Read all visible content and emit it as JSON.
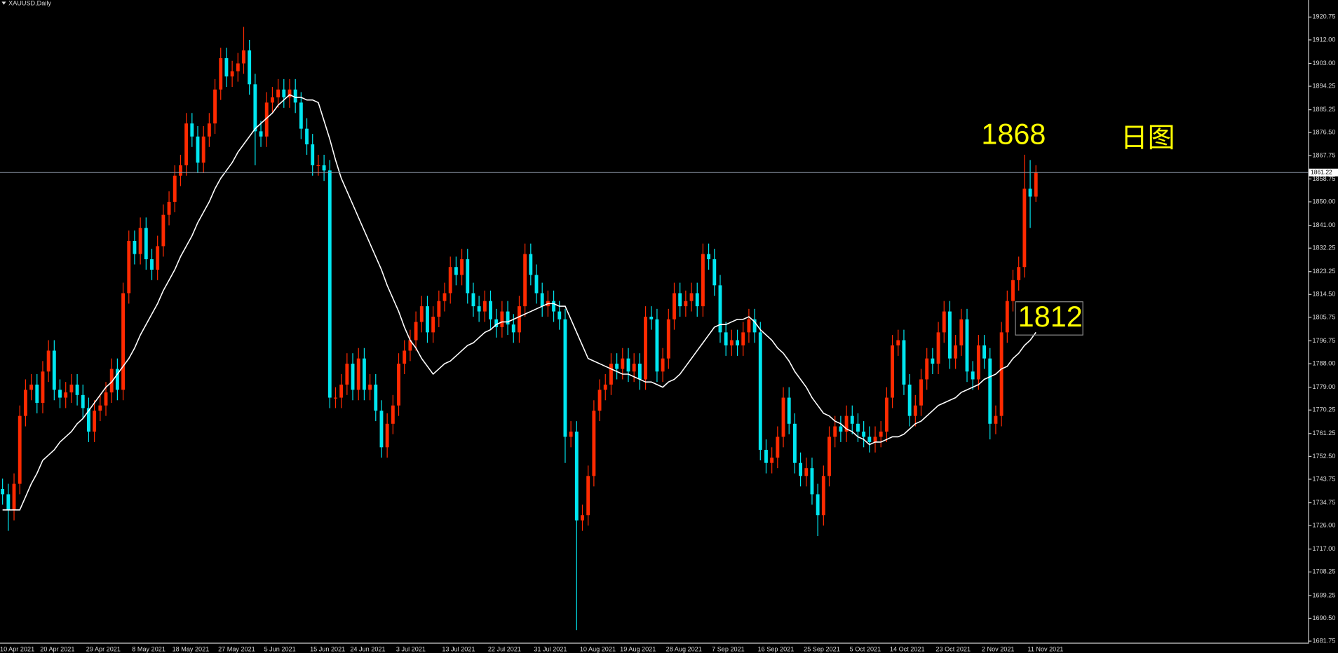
{
  "chart_data": {
    "type": "candlestick",
    "title": "XAUUSD,Daily",
    "categories": [
      "10 Apr 2021",
      null,
      null,
      null,
      null,
      null,
      null,
      "20 Apr 2021",
      null,
      null,
      null,
      null,
      null,
      null,
      null,
      "29 Apr 2021",
      null,
      null,
      null,
      null,
      null,
      null,
      null,
      "8 May 2021",
      null,
      null,
      null,
      null,
      null,
      null,
      "18 May 2021",
      null,
      null,
      null,
      null,
      null,
      null,
      null,
      "27 May 2021",
      null,
      null,
      null,
      null,
      null,
      null,
      null,
      "5 Jun 2021",
      null,
      null,
      null,
      null,
      null,
      null,
      null,
      "15 Jun 2021",
      null,
      null,
      null,
      null,
      null,
      null,
      "24 Jun 2021",
      null,
      null,
      null,
      null,
      null,
      null,
      null,
      "3 Jul 2021",
      null,
      null,
      null,
      null,
      null,
      null,
      null,
      "13 Jul 2021",
      null,
      null,
      null,
      null,
      null,
      null,
      null,
      "22 Jul 2021",
      null,
      null,
      null,
      null,
      null,
      null,
      null,
      "31 Jul 2021",
      null,
      null,
      null,
      null,
      null,
      null,
      null,
      "10 Aug 2021",
      null,
      null,
      null,
      null,
      null,
      null,
      "19 Aug 2021",
      null,
      null,
      null,
      null,
      null,
      null,
      null,
      "28 Aug 2021",
      null,
      null,
      null,
      null,
      null,
      null,
      null,
      "7 Sep 2021",
      null,
      null,
      null,
      null,
      null,
      null,
      null,
      "16 Sep 2021",
      null,
      null,
      null,
      null,
      null,
      null,
      null,
      "25 Sep 2021",
      null,
      null,
      null,
      null,
      null,
      null,
      null,
      "5 Oct 2021",
      null,
      null,
      null,
      null,
      null,
      null,
      "14 Oct 2021",
      null,
      null,
      null,
      null,
      null,
      null,
      null,
      "23 Oct 2021",
      null,
      null,
      null,
      null,
      null,
      null,
      null,
      "2 Nov 2021",
      null,
      null,
      null,
      null,
      null,
      null,
      null,
      "11 Nov 2021",
      null
    ],
    "open": [
      1740,
      1738,
      1732,
      1742,
      1768,
      1778,
      1780,
      1773,
      1785,
      1793,
      1778,
      1775,
      1777,
      1780,
      1776,
      1771,
      1762,
      1770,
      1772,
      1777,
      1786,
      1778,
      1815,
      1835,
      1830,
      1840,
      1828,
      1824,
      1833,
      1845,
      1850,
      1860,
      1864,
      1880,
      1875,
      1865,
      1875,
      1880,
      1893,
      1905,
      1898,
      1900,
      1903,
      1908,
      1895,
      1877,
      1875,
      1888,
      1890,
      1893,
      1890,
      1893,
      1888,
      1878,
      1872,
      1864,
      1864,
      1862,
      1775,
      1775,
      1780,
      1788,
      1778,
      1790,
      1778,
      1780,
      1770,
      1756,
      1765,
      1772,
      1788,
      1793,
      1797,
      1804,
      1810,
      1800,
      1806,
      1812,
      1815,
      1825,
      1822,
      1828,
      1815,
      1810,
      1808,
      1812,
      1805,
      1802,
      1808,
      1803,
      1800,
      1810,
      1830,
      1822,
      1815,
      1810,
      1812,
      1808,
      1805,
      1760,
      1762,
      1728,
      1730,
      1745,
      1770,
      1778,
      1780,
      1788,
      1786,
      1790,
      1785,
      1788,
      1782,
      1806,
      1805,
      1785,
      1790,
      1805,
      1815,
      1810,
      1812,
      1815,
      1810,
      1830,
      1828,
      1818,
      1800,
      1795,
      1797,
      1795,
      1800,
      1805,
      1800,
      1755,
      1750,
      1752,
      1760,
      1775,
      1765,
      1750,
      1745,
      1748,
      1738,
      1730,
      1745,
      1760,
      1764,
      1762,
      1768,
      1765,
      1762,
      1760,
      1758,
      1760,
      1762,
      1775,
      1795,
      1797,
      1780,
      1768,
      1772,
      1782,
      1790,
      1788,
      1800,
      1808,
      1790,
      1795,
      1805,
      1785,
      1782,
      1795,
      1790,
      1765,
      1768,
      1800,
      1812,
      1820,
      1825,
      1855,
      1852
    ],
    "high": [
      1744,
      1742,
      1746,
      1772,
      1782,
      1784,
      1784,
      1789,
      1797,
      1797,
      1782,
      1781,
      1784,
      1784,
      1780,
      1775,
      1774,
      1776,
      1781,
      1790,
      1790,
      1819,
      1839,
      1839,
      1844,
      1844,
      1832,
      1837,
      1849,
      1854,
      1864,
      1868,
      1884,
      1884,
      1879,
      1879,
      1884,
      1897,
      1909,
      1909,
      1904,
      1907,
      1917,
      1912,
      1899,
      1881,
      1892,
      1894,
      1897,
      1897,
      1897,
      1897,
      1892,
      1882,
      1876,
      1868,
      1868,
      1866,
      1779,
      1784,
      1792,
      1792,
      1794,
      1794,
      1784,
      1784,
      1774,
      1769,
      1776,
      1792,
      1797,
      1801,
      1808,
      1814,
      1814,
      1810,
      1816,
      1819,
      1829,
      1829,
      1832,
      1832,
      1819,
      1814,
      1816,
      1816,
      1809,
      1812,
      1812,
      1807,
      1814,
      1834,
      1834,
      1826,
      1819,
      1816,
      1816,
      1812,
      1809,
      1766,
      1766,
      1734,
      1749,
      1774,
      1782,
      1784,
      1792,
      1792,
      1794,
      1794,
      1792,
      1792,
      1810,
      1810,
      1809,
      1794,
      1809,
      1819,
      1819,
      1816,
      1819,
      1819,
      1834,
      1834,
      1832,
      1822,
      1804,
      1801,
      1801,
      1804,
      1809,
      1809,
      1804,
      1759,
      1756,
      1764,
      1779,
      1779,
      1769,
      1754,
      1752,
      1752,
      1742,
      1749,
      1764,
      1768,
      1768,
      1772,
      1772,
      1769,
      1766,
      1764,
      1764,
      1766,
      1779,
      1799,
      1801,
      1801,
      1784,
      1776,
      1786,
      1794,
      1794,
      1804,
      1812,
      1812,
      1799,
      1809,
      1809,
      1789,
      1799,
      1799,
      1794,
      1772,
      1804,
      1816,
      1824,
      1829,
      1868,
      1866,
      1864
    ],
    "low": [
      1734,
      1724,
      1728,
      1738,
      1764,
      1774,
      1769,
      1769,
      1781,
      1774,
      1771,
      1771,
      1773,
      1772,
      1767,
      1758,
      1758,
      1766,
      1768,
      1773,
      1774,
      1774,
      1811,
      1826,
      1826,
      1824,
      1820,
      1820,
      1829,
      1841,
      1846,
      1856,
      1860,
      1871,
      1861,
      1861,
      1871,
      1876,
      1889,
      1894,
      1894,
      1896,
      1899,
      1891,
      1864,
      1871,
      1871,
      1884,
      1886,
      1886,
      1886,
      1884,
      1874,
      1868,
      1860,
      1860,
      1858,
      1771,
      1771,
      1771,
      1776,
      1774,
      1774,
      1774,
      1774,
      1766,
      1752,
      1752,
      1761,
      1768,
      1784,
      1789,
      1793,
      1800,
      1796,
      1796,
      1802,
      1808,
      1811,
      1818,
      1818,
      1811,
      1806,
      1804,
      1804,
      1801,
      1798,
      1798,
      1799,
      1796,
      1796,
      1806,
      1818,
      1811,
      1806,
      1806,
      1804,
      1801,
      1750,
      1756,
      1686,
      1724,
      1726,
      1741,
      1766,
      1774,
      1776,
      1782,
      1782,
      1781,
      1781,
      1778,
      1778,
      1801,
      1781,
      1781,
      1786,
      1801,
      1806,
      1806,
      1808,
      1806,
      1806,
      1824,
      1814,
      1796,
      1791,
      1791,
      1791,
      1791,
      1796,
      1796,
      1751,
      1746,
      1746,
      1748,
      1756,
      1761,
      1746,
      1741,
      1741,
      1734,
      1722,
      1726,
      1741,
      1756,
      1758,
      1758,
      1761,
      1758,
      1756,
      1754,
      1754,
      1756,
      1758,
      1771,
      1791,
      1776,
      1764,
      1764,
      1768,
      1778,
      1784,
      1784,
      1796,
      1786,
      1786,
      1791,
      1781,
      1778,
      1778,
      1786,
      1759,
      1761,
      1764,
      1796,
      1808,
      1816,
      1821,
      1840,
      1850
    ],
    "close": [
      1738,
      1732,
      1742,
      1768,
      1778,
      1780,
      1773,
      1785,
      1793,
      1778,
      1775,
      1777,
      1780,
      1776,
      1771,
      1762,
      1770,
      1772,
      1777,
      1786,
      1778,
      1815,
      1835,
      1830,
      1840,
      1828,
      1824,
      1833,
      1845,
      1850,
      1860,
      1864,
      1880,
      1875,
      1865,
      1875,
      1880,
      1893,
      1905,
      1898,
      1900,
      1903,
      1908,
      1895,
      1877,
      1875,
      1888,
      1890,
      1893,
      1890,
      1893,
      1888,
      1878,
      1872,
      1864,
      1864,
      1862,
      1775,
      1775,
      1780,
      1788,
      1778,
      1790,
      1778,
      1780,
      1770,
      1756,
      1765,
      1772,
      1788,
      1793,
      1797,
      1804,
      1810,
      1800,
      1806,
      1812,
      1815,
      1825,
      1822,
      1828,
      1815,
      1810,
      1808,
      1812,
      1805,
      1802,
      1808,
      1803,
      1800,
      1810,
      1830,
      1822,
      1815,
      1810,
      1812,
      1808,
      1805,
      1760,
      1762,
      1728,
      1730,
      1745,
      1770,
      1778,
      1780,
      1788,
      1786,
      1790,
      1785,
      1788,
      1782,
      1806,
      1805,
      1785,
      1790,
      1805,
      1815,
      1810,
      1812,
      1815,
      1810,
      1830,
      1828,
      1818,
      1800,
      1795,
      1797,
      1795,
      1800,
      1805,
      1800,
      1755,
      1750,
      1752,
      1760,
      1775,
      1765,
      1750,
      1745,
      1748,
      1738,
      1730,
      1745,
      1760,
      1764,
      1762,
      1768,
      1765,
      1762,
      1760,
      1758,
      1760,
      1762,
      1775,
      1795,
      1797,
      1780,
      1768,
      1772,
      1782,
      1790,
      1788,
      1800,
      1808,
      1790,
      1795,
      1805,
      1785,
      1782,
      1795,
      1790,
      1765,
      1768,
      1800,
      1812,
      1820,
      1825,
      1855,
      1852,
      1861.22
    ],
    "up_color": "#ff2a00",
    "down_color": "#00e6f0",
    "moving_average": {
      "color": "#ffffff",
      "values": [
        1732,
        1732,
        1732,
        1732,
        1737,
        1742,
        1746,
        1751,
        1753,
        1755,
        1758,
        1760,
        1762,
        1765,
        1767,
        1770,
        1773,
        1776,
        1779,
        1781,
        1784,
        1787,
        1790,
        1794,
        1799,
        1803,
        1807,
        1811,
        1816,
        1820,
        1824,
        1829,
        1833,
        1837,
        1842,
        1846,
        1850,
        1855,
        1859,
        1862,
        1865,
        1869,
        1872,
        1875,
        1878,
        1880,
        1882,
        1884,
        1887,
        1889,
        1891,
        1890,
        1890,
        1889,
        1889,
        1888,
        1881,
        1874,
        1866,
        1859,
        1854,
        1849,
        1844,
        1839,
        1834,
        1829,
        1824,
        1818,
        1813,
        1808,
        1802,
        1797,
        1794,
        1790,
        1787,
        1784,
        1786,
        1788,
        1789,
        1791,
        1793,
        1795,
        1796,
        1798,
        1800,
        1801,
        1803,
        1804,
        1804,
        1805,
        1806,
        1807,
        1808,
        1809,
        1810,
        1811,
        1811,
        1810,
        1810,
        1805,
        1800,
        1795,
        1790,
        1789,
        1788,
        1787,
        1786,
        1785,
        1784,
        1784,
        1783,
        1782,
        1781,
        1781,
        1780,
        1779,
        1781,
        1782,
        1784,
        1787,
        1790,
        1793,
        1796,
        1799,
        1802,
        1803,
        1803,
        1804,
        1805,
        1805,
        1806,
        1804,
        1801,
        1799,
        1797,
        1794,
        1792,
        1789,
        1785,
        1782,
        1779,
        1775,
        1772,
        1769,
        1768,
        1766,
        1765,
        1763,
        1762,
        1760,
        1759,
        1757,
        1758,
        1758,
        1759,
        1760,
        1760,
        1761,
        1763,
        1765,
        1766,
        1768,
        1770,
        1772,
        1773,
        1774,
        1775,
        1777,
        1778,
        1779,
        1780,
        1782,
        1783,
        1784,
        1786,
        1787,
        1790,
        1792,
        1795,
        1797,
        1800
      ]
    },
    "current_price": 1861.22,
    "current_price_color": "#8a96a6",
    "ylim": [
      1680.8,
      1927.28
    ],
    "yticks": [
      {
        "value": 1920.75,
        "label": "1920.75"
      },
      {
        "value": 1912,
        "label": "1912.00"
      },
      {
        "value": 1903,
        "label": "1903.00"
      },
      {
        "value": 1894.25,
        "label": "1894.25"
      },
      {
        "value": 1885.25,
        "label": "1885.25"
      },
      {
        "value": 1876.5,
        "label": "1876.50"
      },
      {
        "value": 1867.75,
        "label": "1867.75"
      },
      {
        "value": 1858.75,
        "label": "1858.75"
      },
      {
        "value": 1850,
        "label": "1850.00"
      },
      {
        "value": 1841,
        "label": "1841.00"
      },
      {
        "value": 1832.25,
        "label": "1832.25"
      },
      {
        "value": 1823.25,
        "label": "1823.25"
      },
      {
        "value": 1814.5,
        "label": "1814.50"
      },
      {
        "value": 1805.75,
        "label": "1805.75"
      },
      {
        "value": 1796.75,
        "label": "1796.75"
      },
      {
        "value": 1788,
        "label": "1788.00"
      },
      {
        "value": 1779,
        "label": "1779.00"
      },
      {
        "value": 1770.25,
        "label": "1770.25"
      },
      {
        "value": 1761.25,
        "label": "1761.25"
      },
      {
        "value": 1752.5,
        "label": "1752.50"
      },
      {
        "value": 1743.75,
        "label": "1743.75"
      },
      {
        "value": 1734.75,
        "label": "1734.75"
      },
      {
        "value": 1726,
        "label": "1726.00"
      },
      {
        "value": 1717,
        "label": "1717.00"
      },
      {
        "value": 1708.25,
        "label": "1708.25"
      },
      {
        "value": 1699.25,
        "label": "1699.25"
      },
      {
        "value": 1690.5,
        "label": "1690.50"
      },
      {
        "value": 1681.75,
        "label": "1681.75"
      }
    ],
    "grid": false,
    "annotations": [
      {
        "text": "1868"
      },
      {
        "text": "日图"
      },
      {
        "text": "1812"
      }
    ],
    "annotation_color": "#ffff00"
  }
}
